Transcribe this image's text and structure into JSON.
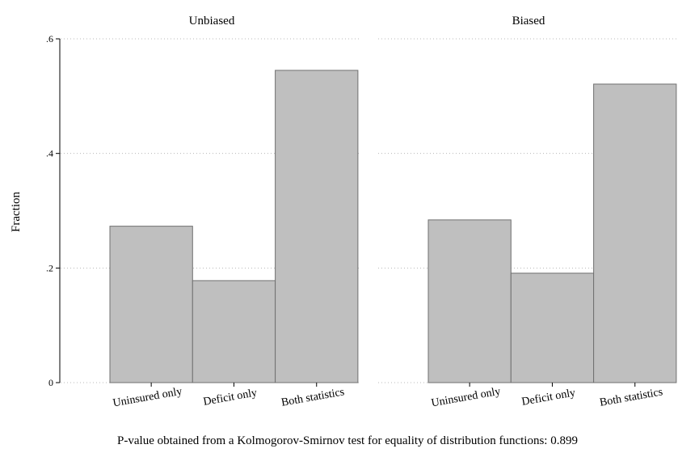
{
  "chart_data": {
    "type": "bar",
    "ylabel": "Fraction",
    "ylim": [
      0,
      0.6
    ],
    "y_ticks": [
      {
        "value": 0,
        "label": "0"
      },
      {
        "value": 0.2,
        "label": ".2"
      },
      {
        "value": 0.4,
        "label": ".4"
      },
      {
        "value": 0.6,
        "label": ".6"
      }
    ],
    "categories": [
      "Uninsured only",
      "Deficit only",
      "Both statistics"
    ],
    "grid": true,
    "panels": [
      {
        "title": "Unbiased",
        "values": [
          0.273,
          0.178,
          0.545
        ]
      },
      {
        "title": "Biased",
        "values": [
          0.284,
          0.191,
          0.521
        ]
      }
    ],
    "note": "P-value obtained from a Kolmogorov-Smirnov test for equality of distribution functions: 0.899"
  }
}
